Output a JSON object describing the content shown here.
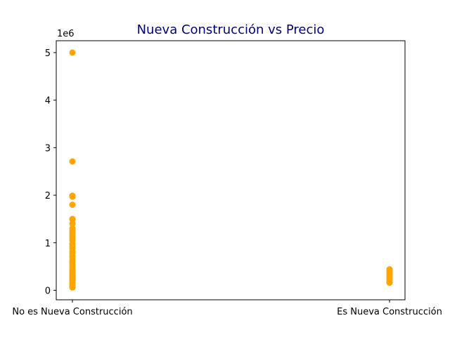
{
  "chart_data": {
    "type": "scatter",
    "title": "Nueva Construcción  vs Precio",
    "title_color": "#000080",
    "xlabel": "",
    "ylabel": "",
    "categories": [
      "No es Nueva Construcción",
      "Es Nueva Construcción"
    ],
    "y_offset_label": "1e6",
    "y_ticks": [
      0,
      1,
      2,
      3,
      4,
      5
    ],
    "y_tick_labels": [
      "0",
      "1",
      "2",
      "3",
      "4",
      "5"
    ],
    "ylim": [
      -0.2,
      5.25
    ],
    "grid": false,
    "marker_color": "#ffa500",
    "series": [
      {
        "category": "No es Nueva Construcción",
        "values": [
          5.0,
          2.71,
          1.99,
          1.97,
          1.8,
          1.5,
          1.49,
          1.4,
          1.3,
          1.25,
          1.2,
          1.15,
          1.1,
          1.05,
          0.98,
          0.93,
          0.88,
          0.82,
          0.78,
          0.72,
          0.68,
          0.62,
          0.58,
          0.53,
          0.48,
          0.44,
          0.41,
          0.38,
          0.35,
          0.32,
          0.3,
          0.28,
          0.26,
          0.24,
          0.22,
          0.2,
          0.18,
          0.16,
          0.14,
          0.12,
          0.1,
          0.08,
          0.06
        ]
      },
      {
        "category": "Es Nueva Construcción",
        "values": [
          0.44,
          0.42,
          0.4,
          0.38,
          0.36,
          0.34,
          0.32,
          0.3,
          0.28,
          0.26,
          0.24,
          0.22,
          0.2,
          0.18,
          0.16
        ]
      }
    ]
  }
}
